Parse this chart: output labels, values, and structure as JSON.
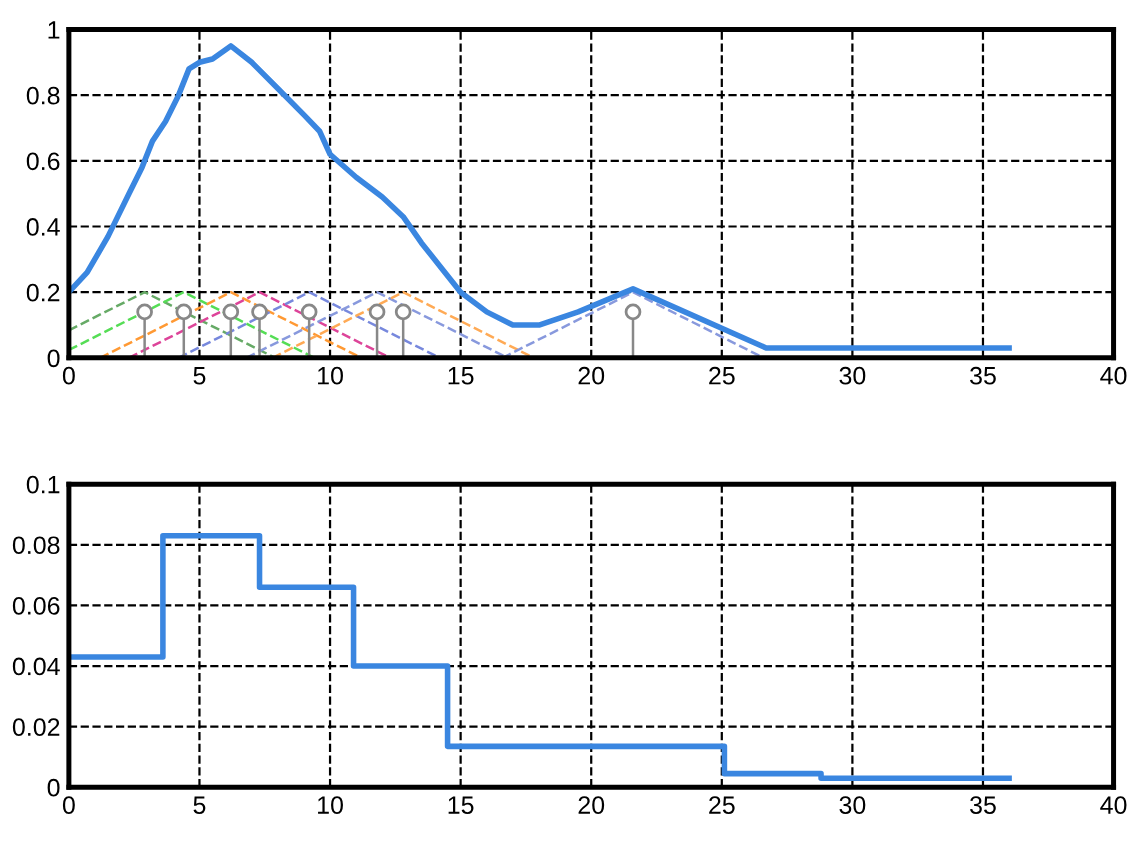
{
  "chart_data": [
    {
      "type": "line",
      "xlim": [
        0,
        40
      ],
      "xticks": [
        0,
        5,
        10,
        15,
        20,
        25,
        30,
        35,
        40
      ],
      "ylim": [
        0,
        1
      ],
      "yticks": [
        0,
        0.2,
        0.4,
        0.6,
        0.8,
        1
      ],
      "grid": true,
      "series": [
        {
          "color": "#66aa66",
          "line_style": "dashed",
          "x": [
            0,
            2.9,
            7.9
          ],
          "values": [
            0.084,
            0.2,
            0
          ]
        },
        {
          "color": "#55dd55",
          "line_style": "dashed",
          "x": [
            0,
            4.4,
            9.4
          ],
          "values": [
            0.024,
            0.2,
            0
          ]
        },
        {
          "color": "#ff9933",
          "line_style": "dashed",
          "x": [
            1.2,
            6.2,
            11.2
          ],
          "values": [
            0,
            0.2,
            0
          ]
        },
        {
          "color": "#dd4499",
          "line_style": "dashed",
          "x": [
            2.3,
            7.3,
            12.3
          ],
          "values": [
            0,
            0.2,
            0
          ]
        },
        {
          "color": "#7788dd",
          "line_style": "dashed",
          "x": [
            4.2,
            9.2,
            14.2
          ],
          "values": [
            0,
            0.2,
            0
          ]
        },
        {
          "color": "#8899dd",
          "line_style": "dashed",
          "x": [
            6.8,
            11.8,
            16.8
          ],
          "values": [
            0,
            0.2,
            0
          ]
        },
        {
          "color": "#ffaa55",
          "line_style": "dashed",
          "x": [
            7.8,
            12.8,
            17.8
          ],
          "values": [
            0,
            0.2,
            0
          ]
        },
        {
          "color": "#8899dd",
          "line_style": "dashed",
          "x": [
            16.6,
            21.6,
            26.6
          ],
          "values": [
            0,
            0.2,
            0
          ]
        },
        {
          "type": "lollipop",
          "color": "#888888",
          "marker": "circle",
          "x": [
            2.9,
            4.4,
            6.2,
            7.3,
            9.2,
            11.8,
            12.8,
            21.6
          ],
          "values": [
            0.14,
            0.14,
            0.14,
            0.14,
            0.14,
            0.14,
            0.14,
            0.14
          ]
        },
        {
          "color": "#3a86e0",
          "line_style": "solid",
          "x": [
            0,
            0.7,
            1.5,
            2.3,
            2.8,
            3.2,
            3.7,
            4.2,
            4.6,
            5.0,
            5.5,
            6.2,
            7.0,
            8.0,
            9.0,
            9.6,
            10.0,
            11.0,
            12.0,
            12.8,
            13.5,
            14.3,
            15.0,
            16.0,
            17.0,
            18.0,
            19.5,
            21.6,
            26.7,
            36
          ],
          "values": [
            0.2,
            0.26,
            0.37,
            0.5,
            0.58,
            0.66,
            0.72,
            0.8,
            0.88,
            0.9,
            0.91,
            0.95,
            0.9,
            0.82,
            0.74,
            0.69,
            0.62,
            0.55,
            0.49,
            0.43,
            0.35,
            0.27,
            0.2,
            0.14,
            0.1,
            0.1,
            0.14,
            0.21,
            0.03,
            0.03
          ]
        }
      ]
    },
    {
      "type": "step",
      "xlim": [
        0,
        40
      ],
      "xticks": [
        0,
        5,
        10,
        15,
        20,
        25,
        30,
        35,
        40
      ],
      "ylim": [
        0,
        0.1
      ],
      "yticks": [
        0,
        0.02,
        0.04,
        0.06,
        0.08,
        0.1
      ],
      "grid": true,
      "series": [
        {
          "color": "#3a86e0",
          "line_style": "solid",
          "x": [
            0,
            3.6,
            7.3,
            10.9,
            14.5,
            25.1,
            28.8,
            36
          ],
          "values": [
            0.043,
            0.083,
            0.066,
            0.04,
            0.0135,
            0.0045,
            0.003,
            0.003
          ]
        }
      ]
    }
  ]
}
